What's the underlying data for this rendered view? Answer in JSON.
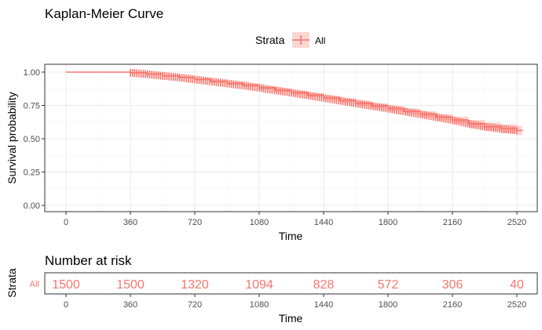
{
  "chart_data": {
    "type": "line",
    "title": "Kaplan-Meier Curve",
    "legend": {
      "title": "Strata",
      "entries": [
        "All"
      ],
      "placement": "top"
    },
    "xlabel": "Time",
    "ylabel": "Survival probability",
    "xlim": [
      0,
      2520
    ],
    "ylim": [
      0,
      1
    ],
    "xticks": [
      "0",
      "360",
      "720",
      "1080",
      "1440",
      "1800",
      "2160",
      "2520"
    ],
    "yticks": [
      "0.00",
      "0.25",
      "0.50",
      "0.75",
      "1.00"
    ],
    "grid": true,
    "colors": {
      "curve": "#F8766D",
      "ci_band": "#F8766D"
    },
    "series": [
      {
        "name": "All",
        "x": [
          0,
          350,
          360,
          450,
          540,
          630,
          720,
          810,
          900,
          990,
          1080,
          1170,
          1260,
          1350,
          1440,
          1530,
          1620,
          1710,
          1800,
          1890,
          1980,
          2070,
          2160,
          2250,
          2340,
          2430,
          2520,
          2550
        ],
        "y": [
          1.0,
          1.0,
          0.995,
          0.985,
          0.972,
          0.96,
          0.945,
          0.93,
          0.915,
          0.9,
          0.882,
          0.863,
          0.845,
          0.826,
          0.806,
          0.786,
          0.766,
          0.746,
          0.726,
          0.705,
          0.684,
          0.662,
          0.64,
          0.612,
          0.59,
          0.575,
          0.562,
          0.56
        ],
        "ci_lower": [
          1.0,
          1.0,
          0.991,
          0.979,
          0.965,
          0.952,
          0.936,
          0.92,
          0.904,
          0.888,
          0.869,
          0.849,
          0.83,
          0.81,
          0.789,
          0.768,
          0.747,
          0.726,
          0.705,
          0.683,
          0.661,
          0.638,
          0.614,
          0.583,
          0.558,
          0.541,
          0.526,
          0.52
        ],
        "ci_upper": [
          1.0,
          1.0,
          0.999,
          0.991,
          0.979,
          0.968,
          0.954,
          0.94,
          0.926,
          0.912,
          0.895,
          0.877,
          0.86,
          0.842,
          0.823,
          0.804,
          0.785,
          0.766,
          0.747,
          0.727,
          0.707,
          0.686,
          0.666,
          0.641,
          0.622,
          0.609,
          0.598,
          0.6
        ]
      }
    ]
  },
  "risk_table": {
    "title": "Number at risk",
    "ylabel": "Strata",
    "xlabel": "Time",
    "strata": [
      "All"
    ],
    "times": [
      "0",
      "360",
      "720",
      "1080",
      "1440",
      "1800",
      "2160",
      "2520"
    ],
    "counts": [
      "1500",
      "1500",
      "1320",
      "1094",
      "828",
      "572",
      "306",
      "40"
    ]
  }
}
